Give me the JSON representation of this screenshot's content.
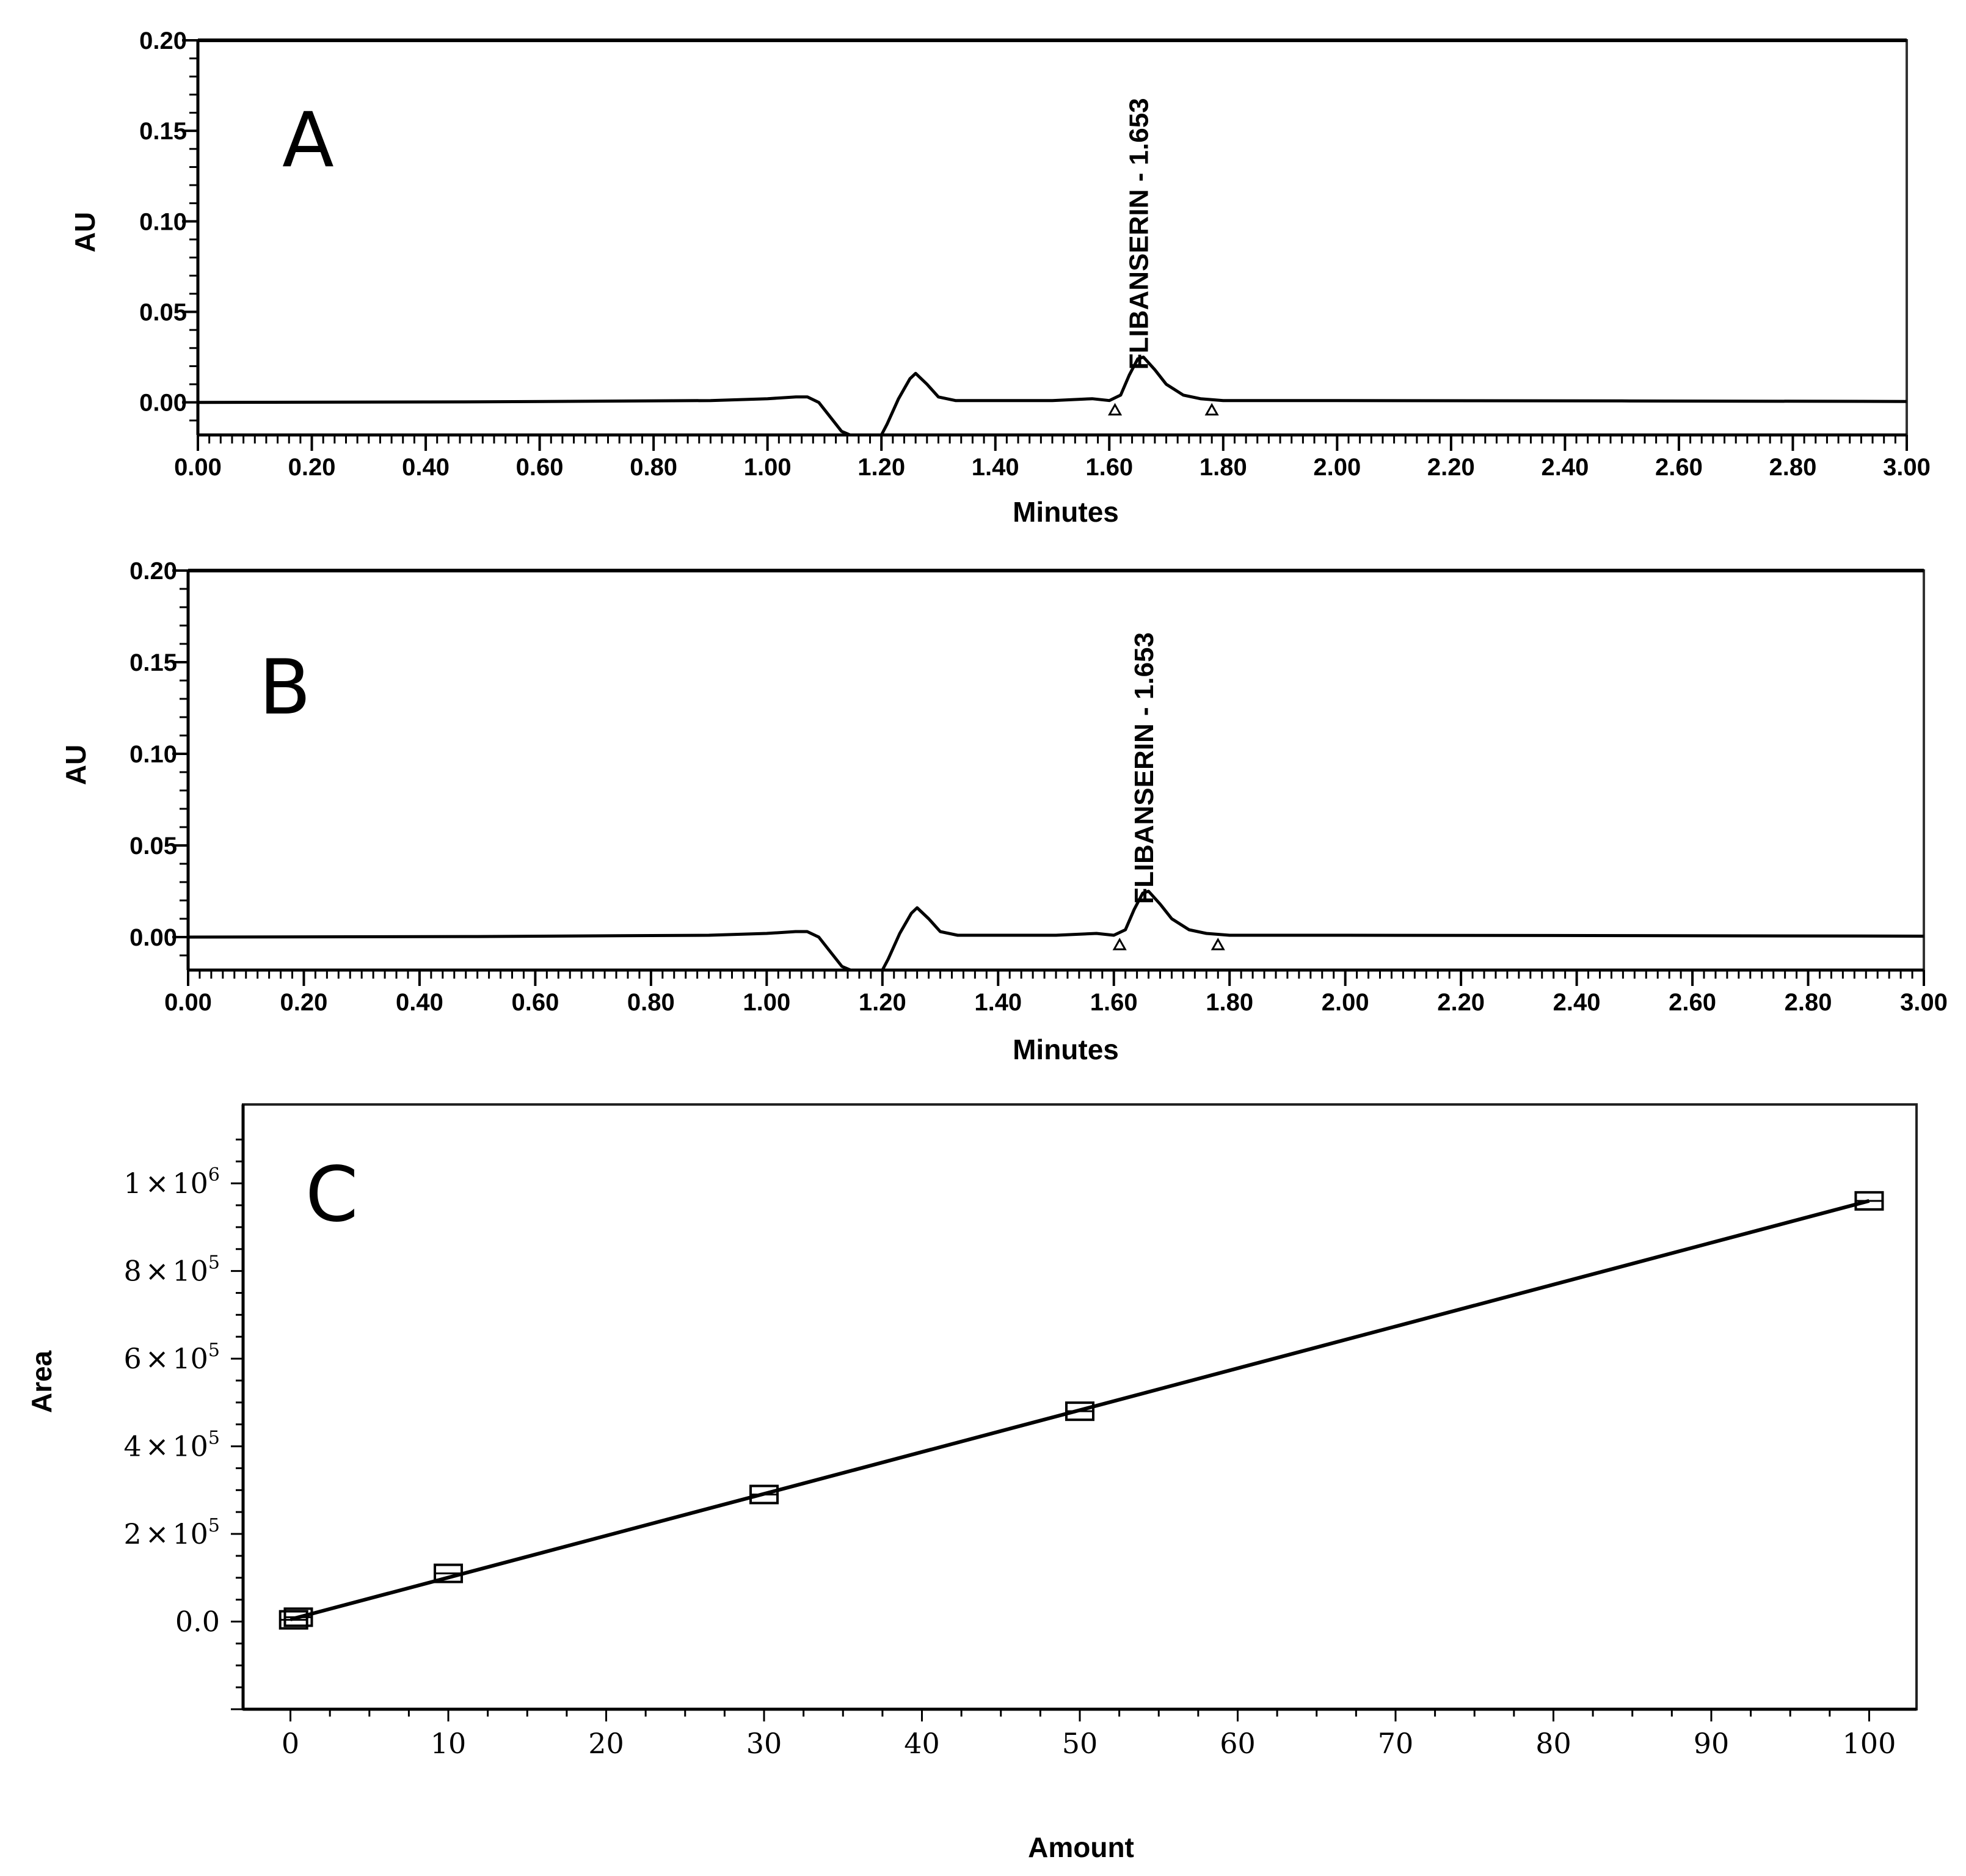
{
  "chart_data": [
    {
      "panel": "A",
      "type": "line",
      "panel_label": "A",
      "xlabel": "Minutes",
      "ylabel": "AU",
      "xlim": [
        0.0,
        3.0
      ],
      "ylim": [
        -0.018,
        0.2
      ],
      "x_ticks": [
        0.0,
        0.2,
        0.4,
        0.6,
        0.8,
        1.0,
        1.2,
        1.4,
        1.6,
        1.8,
        2.0,
        2.2,
        2.4,
        2.6,
        2.8,
        3.0
      ],
      "x_tick_labels": [
        "0.00",
        "0.20",
        "0.40",
        "0.60",
        "0.80",
        "1.00",
        "1.20",
        "1.40",
        "1.60",
        "1.80",
        "2.00",
        "2.20",
        "2.40",
        "2.60",
        "2.80",
        "3.00"
      ],
      "y_ticks": [
        0.0,
        0.05,
        0.1,
        0.15,
        0.2
      ],
      "y_tick_labels": [
        "0.00",
        "0.05",
        "0.10",
        "0.15",
        "0.20"
      ],
      "peak_label": "FLIBANSERIN - 1.653",
      "peak_label_x": 1.653,
      "integration_markers": [
        1.61,
        1.78
      ],
      "series": [
        {
          "name": "chromatogram",
          "x": [
            0.0,
            0.5,
            0.9,
            1.0,
            1.05,
            1.07,
            1.09,
            1.11,
            1.13,
            1.145,
            1.2,
            1.21,
            1.23,
            1.25,
            1.26,
            1.28,
            1.3,
            1.33,
            1.4,
            1.5,
            1.57,
            1.6,
            1.62,
            1.635,
            1.65,
            1.66,
            1.68,
            1.7,
            1.73,
            1.76,
            1.8,
            2.0,
            2.5,
            3.0
          ],
          "y": [
            0.0,
            0.0003,
            0.001,
            0.002,
            0.003,
            0.003,
            0.0,
            -0.008,
            -0.016,
            -0.018,
            -0.018,
            -0.012,
            0.002,
            0.013,
            0.016,
            0.01,
            0.003,
            0.001,
            0.001,
            0.001,
            0.002,
            0.001,
            0.004,
            0.015,
            0.024,
            0.025,
            0.018,
            0.01,
            0.004,
            0.002,
            0.001,
            0.001,
            0.0008,
            0.0005
          ]
        }
      ]
    },
    {
      "panel": "B",
      "type": "line",
      "panel_label": "B",
      "xlabel": "Minutes",
      "ylabel": "AU",
      "xlim": [
        0.0,
        3.0
      ],
      "ylim": [
        -0.018,
        0.2
      ],
      "x_ticks": [
        0.0,
        0.2,
        0.4,
        0.6,
        0.8,
        1.0,
        1.2,
        1.4,
        1.6,
        1.8,
        2.0,
        2.2,
        2.4,
        2.6,
        2.8,
        3.0
      ],
      "x_tick_labels": [
        "0.00",
        "0.20",
        "0.40",
        "0.60",
        "0.80",
        "1.00",
        "1.20",
        "1.40",
        "1.60",
        "1.80",
        "2.00",
        "2.20",
        "2.40",
        "2.60",
        "2.80",
        "3.00"
      ],
      "y_ticks": [
        0.0,
        0.05,
        0.1,
        0.15,
        0.2
      ],
      "y_tick_labels": [
        "0.00",
        "0.05",
        "0.10",
        "0.15",
        "0.20"
      ],
      "peak_label": "FLIBANSERIN - 1.653",
      "peak_label_x": 1.653,
      "integration_markers": [
        1.61,
        1.78
      ],
      "series": [
        {
          "name": "chromatogram",
          "x": [
            0.0,
            0.5,
            0.9,
            1.0,
            1.05,
            1.07,
            1.09,
            1.11,
            1.13,
            1.145,
            1.2,
            1.21,
            1.23,
            1.25,
            1.26,
            1.28,
            1.3,
            1.33,
            1.4,
            1.5,
            1.57,
            1.6,
            1.62,
            1.635,
            1.65,
            1.66,
            1.68,
            1.7,
            1.73,
            1.76,
            1.8,
            2.0,
            2.5,
            3.0
          ],
          "y": [
            0.0,
            0.0003,
            0.001,
            0.002,
            0.003,
            0.003,
            0.0,
            -0.008,
            -0.016,
            -0.018,
            -0.018,
            -0.012,
            0.002,
            0.013,
            0.016,
            0.01,
            0.003,
            0.001,
            0.001,
            0.001,
            0.002,
            0.001,
            0.004,
            0.015,
            0.024,
            0.025,
            0.018,
            0.01,
            0.004,
            0.002,
            0.001,
            0.001,
            0.0008,
            0.0005
          ]
        }
      ]
    },
    {
      "panel": "C",
      "type": "scatter",
      "panel_label": "C",
      "xlabel": "Amount",
      "ylabel": "Area",
      "xlim": [
        -3,
        103
      ],
      "ylim": [
        -200000,
        1180000
      ],
      "x_ticks": [
        0,
        10,
        20,
        30,
        40,
        50,
        60,
        70,
        80,
        90,
        100
      ],
      "x_tick_labels": [
        "0",
        "10",
        "20",
        "30",
        "40",
        "50",
        "60",
        "70",
        "80",
        "90",
        "100"
      ],
      "y_ticks": [
        0,
        200000,
        400000,
        600000,
        800000,
        1000000
      ],
      "y_tick_labels": [
        {
          "mantissa": "0.0",
          "times": "",
          "base": "",
          "exp": ""
        },
        {
          "mantissa": "2",
          "times": "×",
          "base": "10",
          "exp": "5"
        },
        {
          "mantissa": "4",
          "times": "×",
          "base": "10",
          "exp": "5"
        },
        {
          "mantissa": "6",
          "times": "×",
          "base": "10",
          "exp": "5"
        },
        {
          "mantissa": "8",
          "times": "×",
          "base": "10",
          "exp": "5"
        },
        {
          "mantissa": "1",
          "times": "×",
          "base": "10",
          "exp": "6"
        }
      ],
      "points": {
        "x": [
          0.2,
          0.5,
          10,
          30,
          50,
          100
        ],
        "y": [
          4000,
          10000,
          110000,
          290000,
          480000,
          960000
        ]
      },
      "fit_line": {
        "x": [
          0,
          100
        ],
        "y": [
          5000,
          960000
        ]
      }
    }
  ]
}
